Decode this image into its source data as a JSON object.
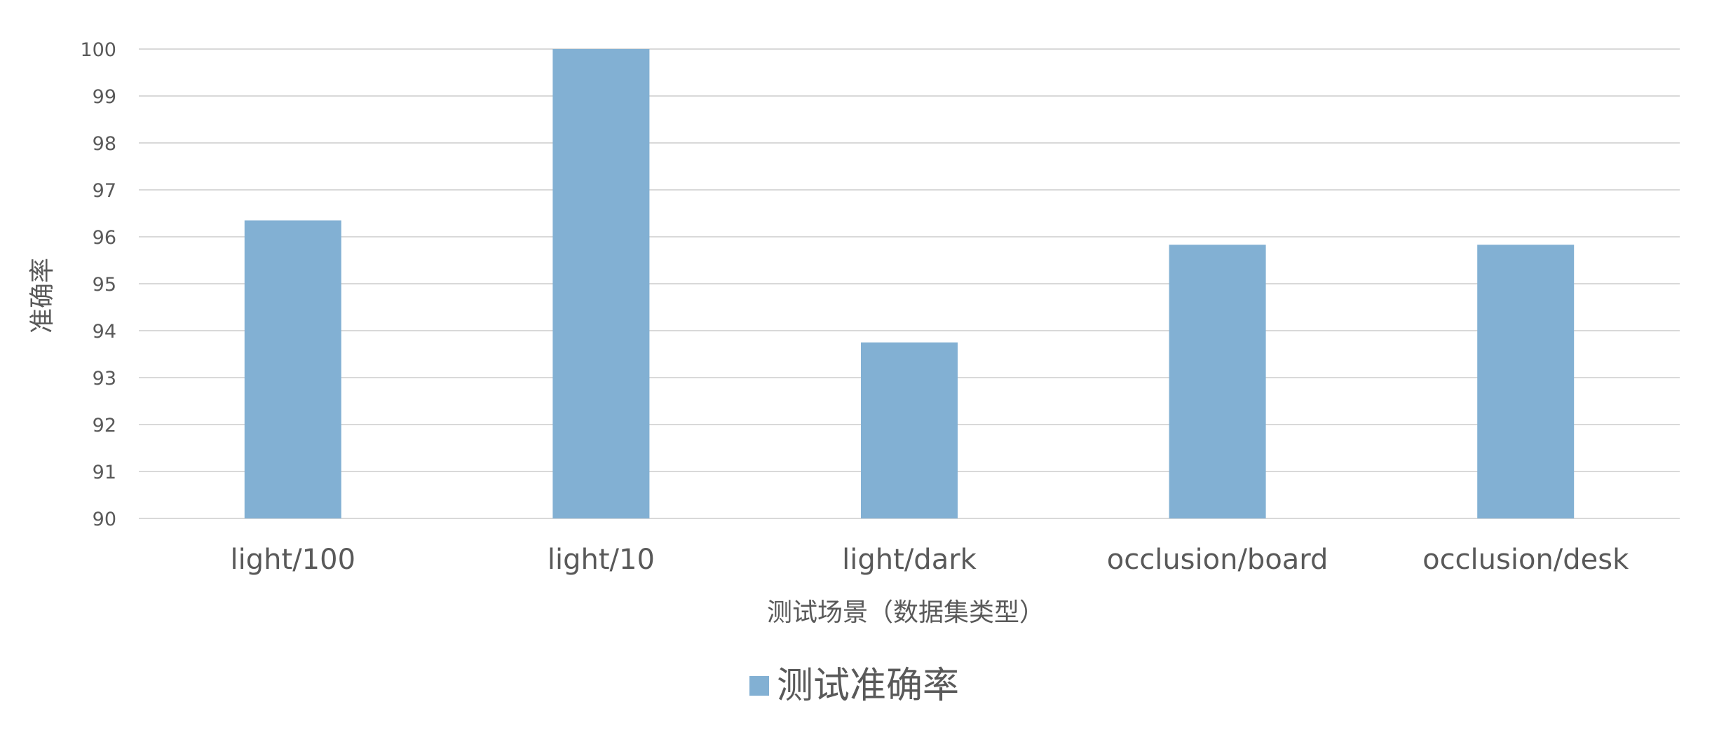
{
  "chart_data": {
    "type": "bar",
    "categories": [
      "light/100",
      "light/10",
      "light/dark",
      "occlusion/board",
      "occlusion/desk"
    ],
    "series": [
      {
        "name": "测试准确率",
        "values": [
          96.35,
          100,
          93.75,
          95.83,
          95.83
        ],
        "color": "#82b0d3"
      }
    ],
    "xlabel": "测试场景（数据集类型）",
    "ylabel": "准确率",
    "ylim": [
      90,
      100
    ],
    "yticks": [
      "90",
      "91",
      "92",
      "93",
      "94",
      "95",
      "96",
      "97",
      "98",
      "99",
      "100"
    ],
    "grid": true,
    "legend_position": "bottom"
  }
}
